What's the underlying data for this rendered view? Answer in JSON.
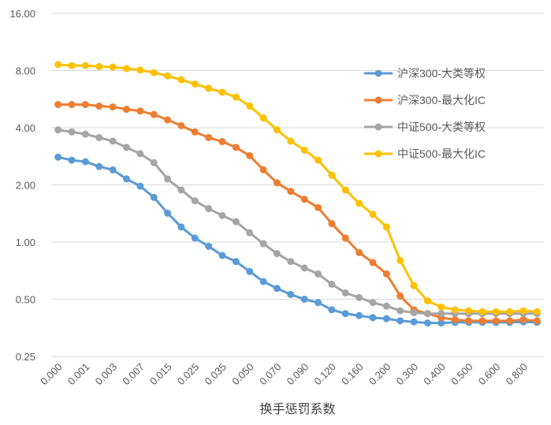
{
  "chart_data": {
    "type": "line",
    "title": "",
    "xlabel": "换手惩罚系数",
    "ylabel": "",
    "yscale": "log2",
    "ylim": [
      0.25,
      16.0
    ],
    "y_ticks": [
      "0.25",
      "0.50",
      "1.00",
      "2.00",
      "4.00",
      "8.00",
      "16.00"
    ],
    "grid": "horizontal",
    "legend_position": "right",
    "categories": [
      "0.000",
      "0.0005",
      "0.001",
      "0.002",
      "0.003",
      "0.005",
      "0.007",
      "0.01",
      "0.015",
      "0.02",
      "0.025",
      "0.03",
      "0.035",
      "0.04",
      "0.050",
      "0.06",
      "0.070",
      "0.08",
      "0.090",
      "0.10",
      "0.120",
      "0.14",
      "0.160",
      "0.18",
      "0.200",
      "0.25",
      "0.300",
      "0.35",
      "0.400",
      "0.45",
      "0.500",
      "0.55",
      "0.600",
      "0.70",
      "0.800",
      "0.90"
    ],
    "x_tick_labels": [
      "0.000",
      "0.001",
      "0.003",
      "0.007",
      "0.015",
      "0.025",
      "0.035",
      "0.050",
      "0.070",
      "0.090",
      "0.120",
      "0.160",
      "0.200",
      "0.300",
      "0.400",
      "0.500",
      "0.600",
      "0.800"
    ],
    "series": [
      {
        "name": "沪深300-大类等权",
        "color": "#5B9BD5",
        "values": [
          2.8,
          2.7,
          2.65,
          2.5,
          2.4,
          2.15,
          1.97,
          1.72,
          1.42,
          1.2,
          1.05,
          0.95,
          0.85,
          0.79,
          0.7,
          0.62,
          0.57,
          0.53,
          0.5,
          0.48,
          0.44,
          0.42,
          0.41,
          0.4,
          0.395,
          0.385,
          0.38,
          0.375,
          0.375,
          0.378,
          0.378,
          0.378,
          0.378,
          0.378,
          0.38,
          0.378
        ]
      },
      {
        "name": "沪深300-最大化IC",
        "color": "#ED7D31",
        "values": [
          5.3,
          5.3,
          5.3,
          5.2,
          5.15,
          5.0,
          4.9,
          4.7,
          4.4,
          4.1,
          3.8,
          3.55,
          3.38,
          3.15,
          2.85,
          2.4,
          2.05,
          1.85,
          1.68,
          1.52,
          1.25,
          1.05,
          0.88,
          0.78,
          0.68,
          0.52,
          0.44,
          0.42,
          0.4,
          0.39,
          0.385,
          0.385,
          0.385,
          0.385,
          0.39,
          0.385
        ]
      },
      {
        "name": "中证500-大类等权",
        "color": "#A5A5A5",
        "values": [
          3.9,
          3.8,
          3.7,
          3.55,
          3.4,
          3.15,
          2.92,
          2.62,
          2.15,
          1.88,
          1.65,
          1.5,
          1.38,
          1.28,
          1.12,
          0.98,
          0.87,
          0.79,
          0.73,
          0.68,
          0.6,
          0.54,
          0.51,
          0.48,
          0.46,
          0.435,
          0.425,
          0.42,
          0.42,
          0.42,
          0.42,
          0.42,
          0.42,
          0.42,
          0.42,
          0.42
        ]
      },
      {
        "name": "中证500-最大化IC",
        "color": "#FFC000",
        "values": [
          8.6,
          8.5,
          8.5,
          8.4,
          8.35,
          8.2,
          8.05,
          7.8,
          7.5,
          7.15,
          6.8,
          6.45,
          6.15,
          5.8,
          5.2,
          4.5,
          3.9,
          3.4,
          3.05,
          2.7,
          2.25,
          1.88,
          1.6,
          1.4,
          1.2,
          0.8,
          0.59,
          0.49,
          0.455,
          0.44,
          0.435,
          0.43,
          0.43,
          0.43,
          0.435,
          0.43
        ]
      }
    ]
  }
}
